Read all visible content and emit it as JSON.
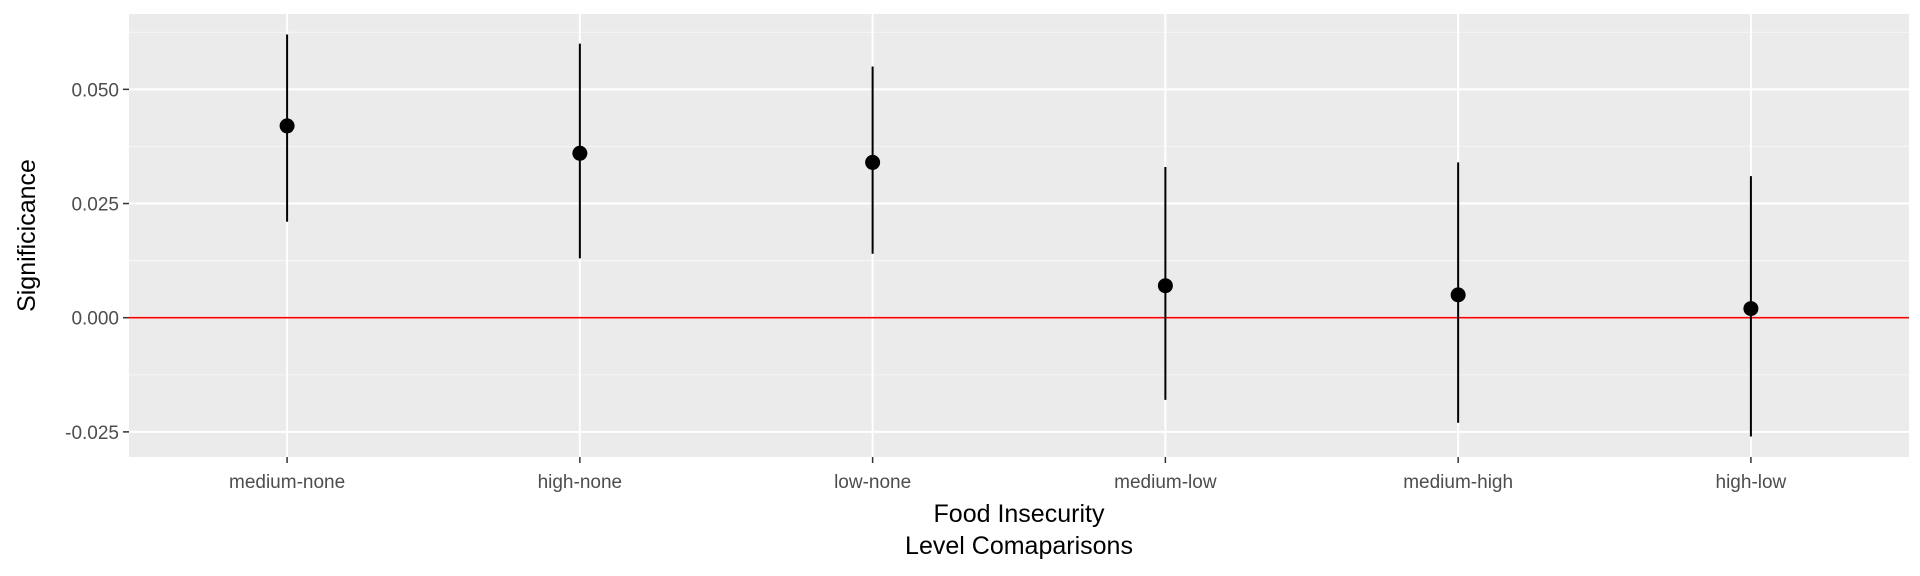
{
  "chart_data": {
    "type": "scatter",
    "subtype": "pointrange",
    "categories": [
      "medium-none",
      "high-none",
      "low-none",
      "medium-low",
      "medium-high",
      "high-low"
    ],
    "estimate": [
      0.042,
      0.036,
      0.034,
      0.007,
      0.005,
      0.002
    ],
    "lower": [
      0.021,
      0.013,
      0.014,
      -0.018,
      -0.023,
      -0.026
    ],
    "upper": [
      0.062,
      0.06,
      0.055,
      0.033,
      0.034,
      0.031
    ],
    "ylim": [
      -0.0305,
      0.0665
    ],
    "yticks": [
      -0.025,
      0.0,
      0.025,
      0.05
    ],
    "ytick_labels": [
      "-0.025",
      "0.000",
      "0.025",
      "0.050"
    ],
    "reference_line": 0,
    "xlabel_lines": [
      "Food Insecurity",
      "Level Comaparisons"
    ],
    "ylabel": "Significicance",
    "grid": true,
    "legend": "none",
    "colors": {
      "panel": "#ebebeb",
      "grid_major": "#ffffff",
      "grid_minor": "#f5f5f5",
      "points": "#000000",
      "reference_line": "#ff0000",
      "tick_text": "#4d4d4d",
      "axis_title": "#000000"
    }
  }
}
